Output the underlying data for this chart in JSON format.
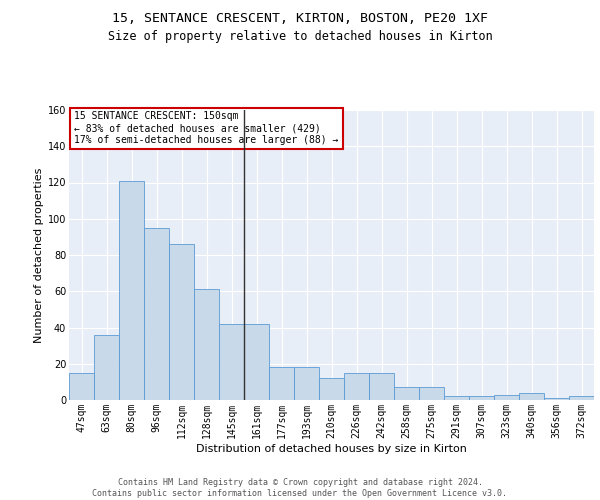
{
  "title1": "15, SENTANCE CRESCENT, KIRTON, BOSTON, PE20 1XF",
  "title2": "Size of property relative to detached houses in Kirton",
  "xlabel": "Distribution of detached houses by size in Kirton",
  "ylabel": "Number of detached properties",
  "categories": [
    "47sqm",
    "63sqm",
    "80sqm",
    "96sqm",
    "112sqm",
    "128sqm",
    "145sqm",
    "161sqm",
    "177sqm",
    "193sqm",
    "210sqm",
    "226sqm",
    "242sqm",
    "258sqm",
    "275sqm",
    "291sqm",
    "307sqm",
    "323sqm",
    "340sqm",
    "356sqm",
    "372sqm"
  ],
  "bar_heights": [
    15,
    36,
    121,
    95,
    86,
    61,
    42,
    42,
    18,
    18,
    12,
    15,
    15,
    7,
    7,
    2,
    2,
    3,
    4,
    1,
    2
  ],
  "bar_color": "#c8d9ea",
  "bar_edge_color": "#5a9bd5",
  "vline_x": 7.0,
  "vline_color": "#333333",
  "annotation_text": "15 SENTANCE CRESCENT: 150sqm\n← 83% of detached houses are smaller (429)\n17% of semi-detached houses are larger (88) →",
  "annotation_box_facecolor": "#ffffff",
  "annotation_box_edgecolor": "#cc0000",
  "footer": "Contains HM Land Registry data © Crown copyright and database right 2024.\nContains public sector information licensed under the Open Government Licence v3.0.",
  "ylim": [
    0,
    160
  ],
  "yticks": [
    0,
    20,
    40,
    60,
    80,
    100,
    120,
    140,
    160
  ],
  "background_color": "#e8eef7",
  "grid_color": "#ffffff",
  "title1_fontsize": 9.5,
  "title2_fontsize": 8.5,
  "xlabel_fontsize": 8,
  "ylabel_fontsize": 8,
  "tick_fontsize": 7,
  "annotation_fontsize": 7,
  "footer_fontsize": 6
}
